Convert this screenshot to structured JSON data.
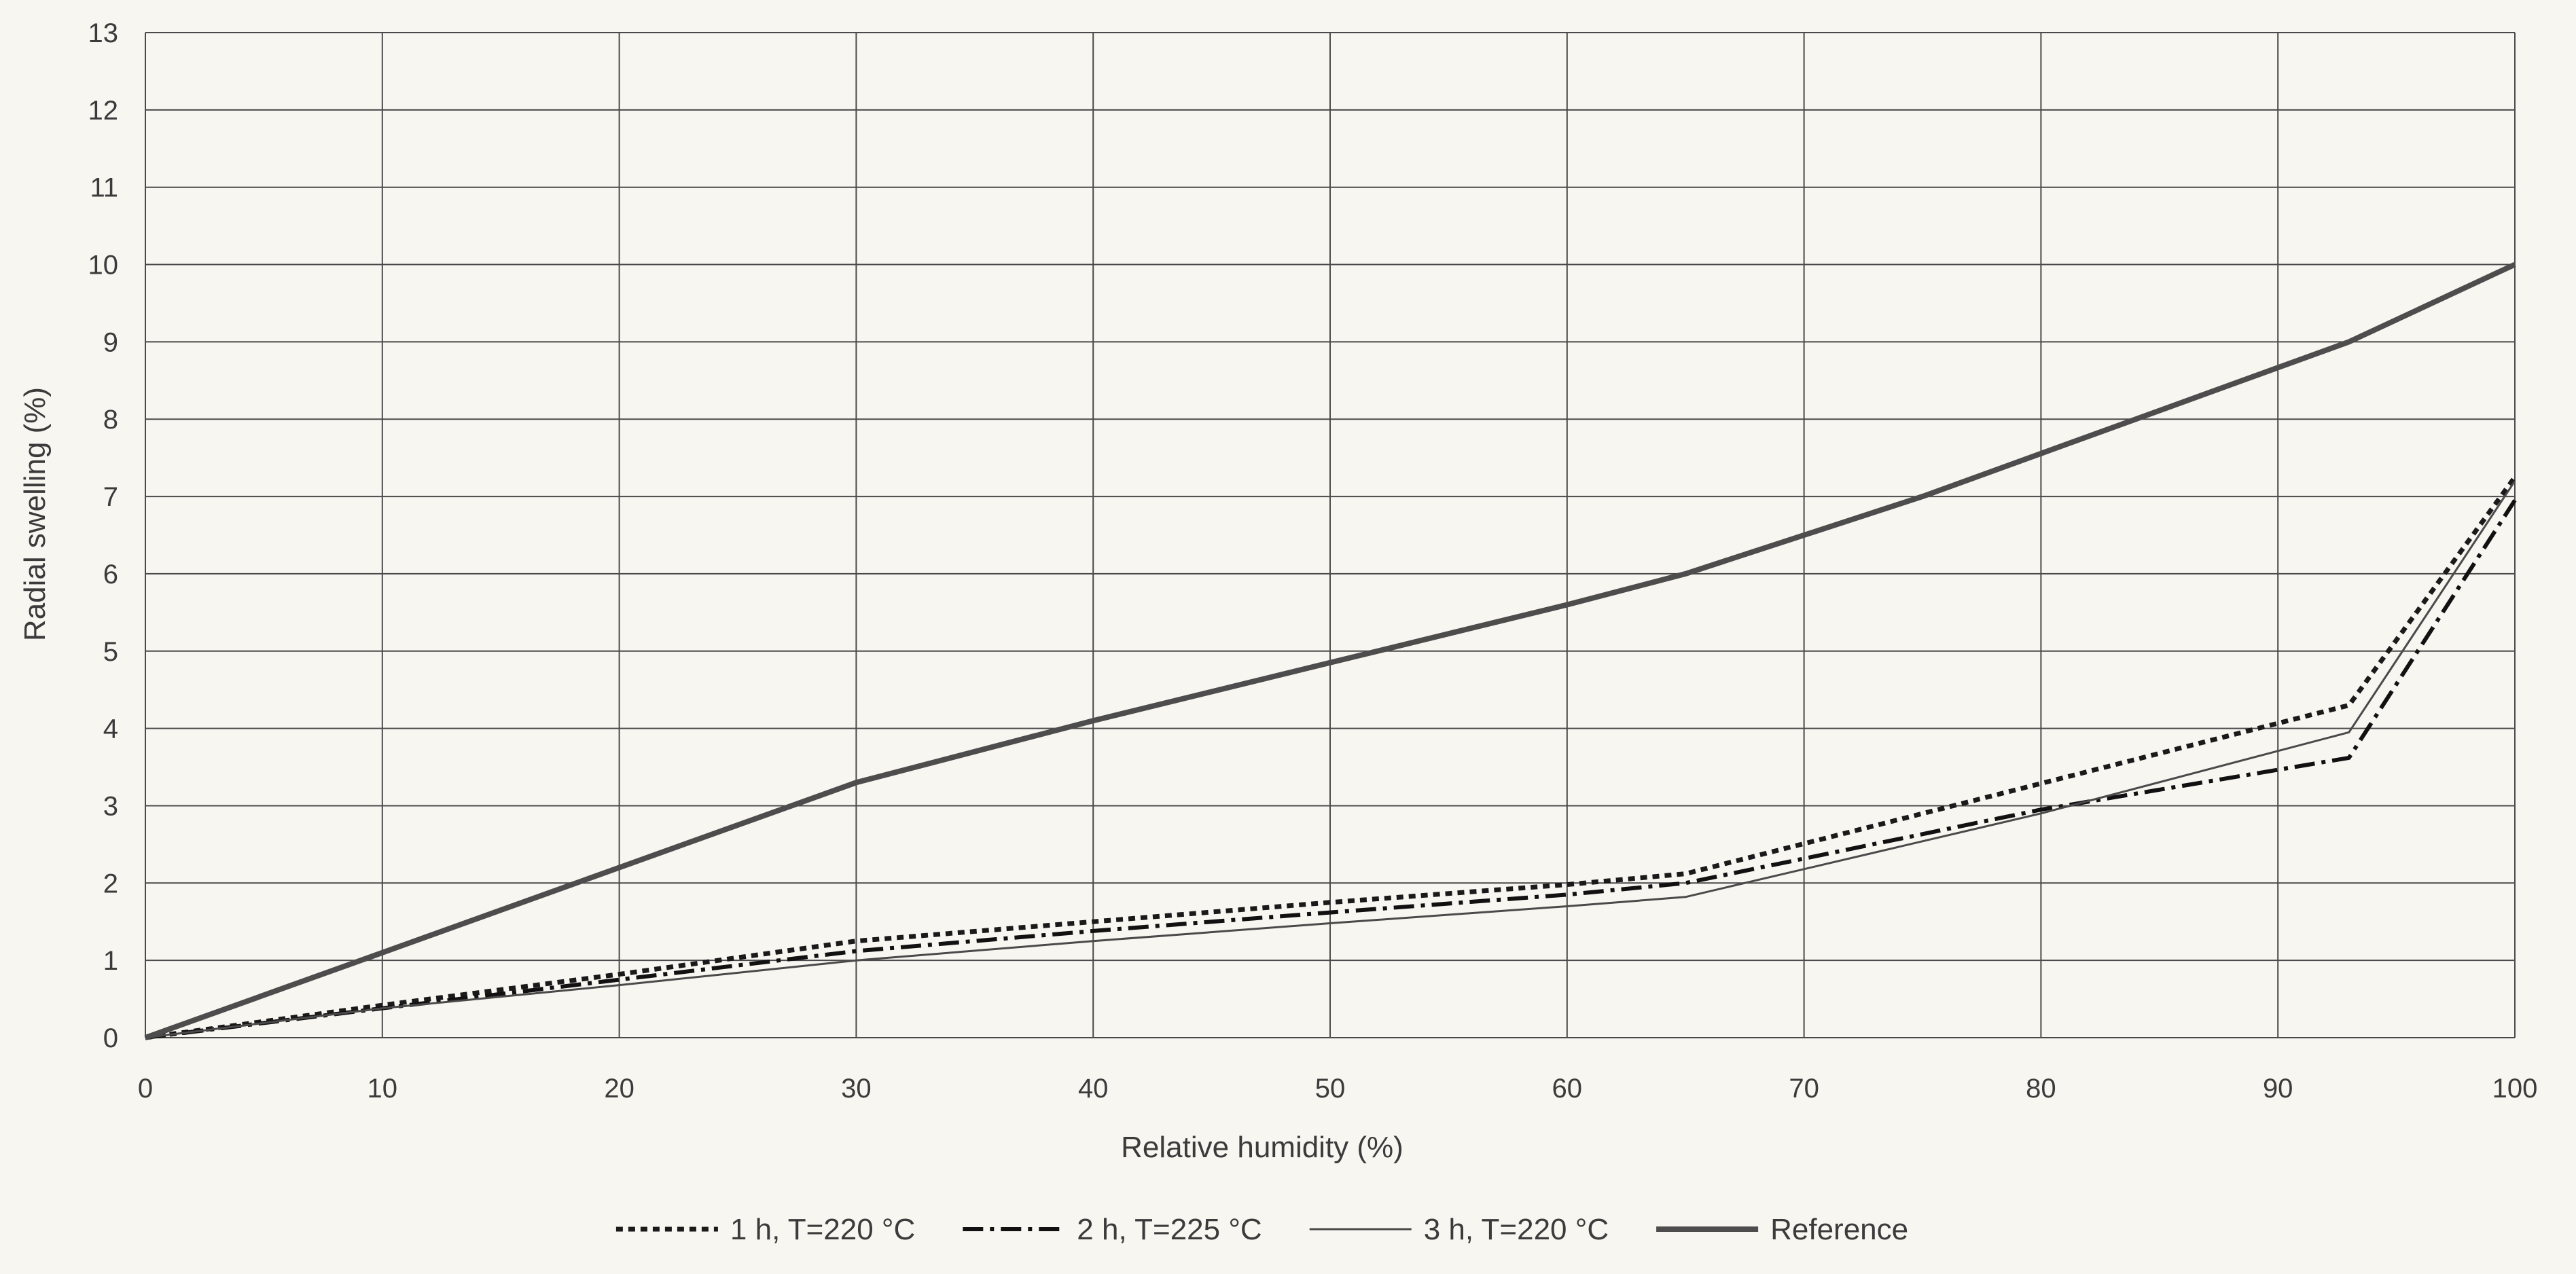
{
  "chart_data": {
    "type": "line",
    "title": "",
    "xlabel": "Relative humidity (%)",
    "ylabel": "Radial swelling (%)",
    "xlim": [
      0,
      100
    ],
    "ylim": [
      0,
      13
    ],
    "x_ticks": [
      0,
      10,
      20,
      30,
      40,
      50,
      60,
      70,
      80,
      90,
      100
    ],
    "y_ticks": [
      0,
      1,
      2,
      3,
      4,
      5,
      6,
      7,
      8,
      9,
      10,
      11,
      12,
      13
    ],
    "grid": true,
    "legend_position": "bottom",
    "series": [
      {
        "name": "1 h, T=220 °C",
        "style": "dotted",
        "color": "#1a1a1a",
        "points": [
          [
            0,
            0
          ],
          [
            10,
            0.42
          ],
          [
            20,
            0.82
          ],
          [
            30,
            1.25
          ],
          [
            40,
            1.5
          ],
          [
            50,
            1.75
          ],
          [
            60,
            1.98
          ],
          [
            65,
            2.12
          ],
          [
            93,
            4.3
          ],
          [
            100,
            7.25
          ]
        ]
      },
      {
        "name": "2 h, T=225 °C",
        "style": "dashdot",
        "color": "#111111",
        "points": [
          [
            0,
            0
          ],
          [
            10,
            0.38
          ],
          [
            20,
            0.75
          ],
          [
            30,
            1.12
          ],
          [
            40,
            1.38
          ],
          [
            50,
            1.62
          ],
          [
            60,
            1.85
          ],
          [
            65,
            2.0
          ],
          [
            80,
            2.95
          ],
          [
            93,
            3.62
          ],
          [
            100,
            6.95
          ]
        ]
      },
      {
        "name": "3 h, T=220 °C",
        "style": "thin",
        "color": "#4a4a4a",
        "points": [
          [
            0,
            0
          ],
          [
            10,
            0.38
          ],
          [
            20,
            0.68
          ],
          [
            30,
            1.0
          ],
          [
            40,
            1.25
          ],
          [
            50,
            1.48
          ],
          [
            60,
            1.7
          ],
          [
            65,
            1.82
          ],
          [
            80,
            2.9
          ],
          [
            93,
            3.95
          ],
          [
            100,
            7.2
          ]
        ]
      },
      {
        "name": "Reference",
        "style": "thick",
        "color": "#4d4d4d",
        "points": [
          [
            0,
            0
          ],
          [
            10,
            1.1
          ],
          [
            20,
            2.2
          ],
          [
            30,
            3.3
          ],
          [
            40,
            4.1
          ],
          [
            50,
            4.85
          ],
          [
            60,
            5.6
          ],
          [
            65,
            6.0
          ],
          [
            75,
            7.0
          ],
          [
            93,
            9.0
          ],
          [
            100,
            10.0
          ]
        ]
      }
    ]
  }
}
